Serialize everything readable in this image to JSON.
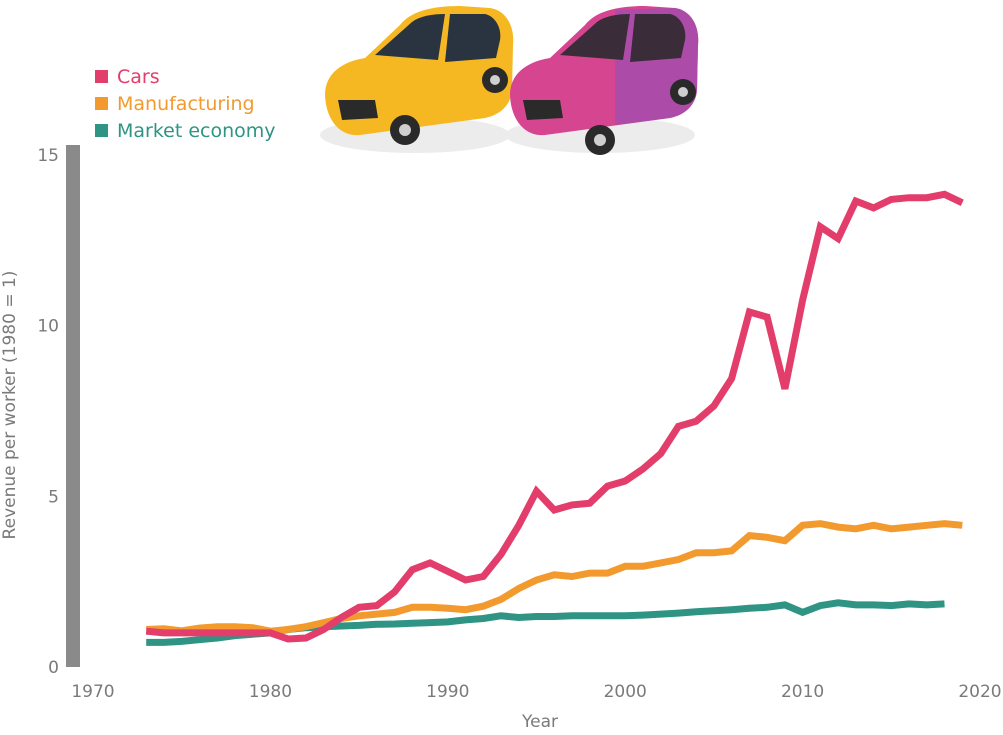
{
  "chart_data": {
    "type": "line",
    "title": "",
    "xlabel": "Year",
    "ylabel": "Revenue per worker (1980 = 1)",
    "xlim": [
      1970,
      2020
    ],
    "ylim": [
      0,
      15
    ],
    "xticks": [
      "1970",
      "1980",
      "1990",
      "2000",
      "2010",
      "2020"
    ],
    "yticks": [
      "0",
      "5",
      "10",
      "15"
    ],
    "grid": false,
    "legend_position": "top-left",
    "colors": {
      "cars": "#e23d6b",
      "manufacturing": "#f29a2e",
      "market": "#2f9484",
      "axis": "#8a8a8a",
      "text": "#7a7a7a"
    },
    "illustration": [
      "yellow-car-icon",
      "pink-car-icon"
    ],
    "series": [
      {
        "name": "Cars",
        "color": "#e23d6b",
        "x": [
          1973,
          1974,
          1975,
          1976,
          1977,
          1978,
          1979,
          1980,
          1981,
          1982,
          1983,
          1984,
          1985,
          1986,
          1987,
          1988,
          1989,
          1990,
          1991,
          1992,
          1993,
          1994,
          1995,
          1996,
          1997,
          1998,
          1999,
          2000,
          2001,
          2002,
          2003,
          2004,
          2005,
          2006,
          2007,
          2008,
          2009,
          2010,
          2011,
          2012,
          2013,
          2014,
          2015,
          2016,
          2017,
          2018,
          2019
        ],
        "y": [
          1.05,
          1.0,
          1.0,
          1.0,
          1.0,
          1.0,
          1.0,
          1.0,
          0.82,
          0.85,
          1.1,
          1.45,
          1.75,
          1.8,
          2.2,
          2.85,
          3.05,
          2.8,
          2.55,
          2.65,
          3.3,
          4.15,
          5.15,
          4.6,
          4.75,
          4.8,
          5.3,
          5.45,
          5.8,
          6.25,
          7.05,
          7.2,
          7.65,
          8.45,
          10.4,
          10.25,
          8.15,
          10.75,
          12.9,
          12.55,
          13.65,
          13.45,
          13.7,
          13.75,
          13.75,
          13.85,
          13.6
        ]
      },
      {
        "name": "Manufacturing",
        "color": "#f29a2e",
        "x": [
          1973,
          1974,
          1975,
          1976,
          1977,
          1978,
          1979,
          1980,
          1981,
          1982,
          1983,
          1984,
          1985,
          1986,
          1987,
          1988,
          1989,
          1990,
          1991,
          1992,
          1993,
          1994,
          1995,
          1996,
          1997,
          1998,
          1999,
          2000,
          2001,
          2002,
          2003,
          2004,
          2005,
          2006,
          2007,
          2008,
          2009,
          2010,
          2011,
          2012,
          2013,
          2014,
          2015,
          2016,
          2017,
          2018,
          2019
        ],
        "y": [
          1.1,
          1.12,
          1.06,
          1.14,
          1.18,
          1.18,
          1.15,
          1.05,
          1.1,
          1.18,
          1.3,
          1.42,
          1.5,
          1.55,
          1.6,
          1.75,
          1.75,
          1.72,
          1.68,
          1.78,
          1.98,
          2.3,
          2.55,
          2.7,
          2.65,
          2.75,
          2.75,
          2.95,
          2.95,
          3.05,
          3.15,
          3.35,
          3.35,
          3.4,
          3.85,
          3.8,
          3.7,
          4.15,
          4.2,
          4.1,
          4.05,
          4.15,
          4.05,
          4.1,
          4.15,
          4.2,
          4.15
        ]
      },
      {
        "name": "Market economy",
        "color": "#2f9484",
        "x": [
          1973,
          1974,
          1975,
          1976,
          1977,
          1978,
          1979,
          1980,
          1981,
          1982,
          1983,
          1984,
          1985,
          1986,
          1987,
          1988,
          1989,
          1990,
          1991,
          1992,
          1993,
          1994,
          1995,
          1996,
          1997,
          1998,
          1999,
          2000,
          2001,
          2002,
          2003,
          2004,
          2005,
          2006,
          2007,
          2008,
          2009,
          2010,
          2011,
          2012,
          2013,
          2014,
          2015,
          2016,
          2017,
          2018
        ],
        "y": [
          0.72,
          0.72,
          0.75,
          0.8,
          0.85,
          0.92,
          0.96,
          1.0,
          1.1,
          1.15,
          1.18,
          1.2,
          1.22,
          1.25,
          1.26,
          1.28,
          1.3,
          1.32,
          1.38,
          1.42,
          1.5,
          1.45,
          1.48,
          1.48,
          1.5,
          1.5,
          1.5,
          1.5,
          1.52,
          1.55,
          1.58,
          1.62,
          1.65,
          1.68,
          1.72,
          1.75,
          1.82,
          1.6,
          1.8,
          1.88,
          1.82,
          1.82,
          1.8,
          1.85,
          1.82,
          1.85
        ]
      }
    ]
  }
}
